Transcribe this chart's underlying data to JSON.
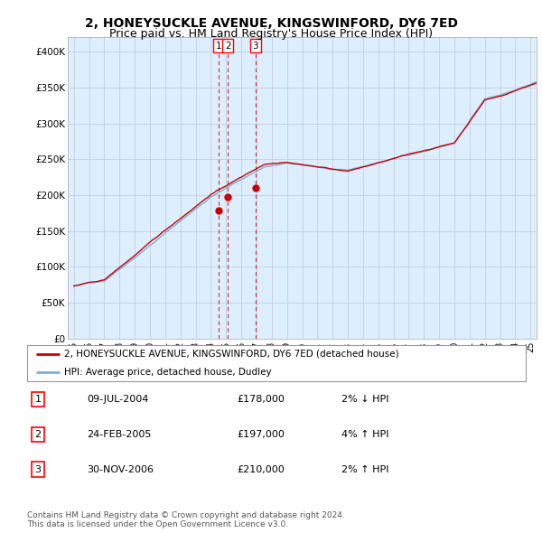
{
  "title": "2, HONEYSUCKLE AVENUE, KINGSWINFORD, DY6 7ED",
  "subtitle": "Price paid vs. HM Land Registry's House Price Index (HPI)",
  "title_fontsize": 10,
  "subtitle_fontsize": 9,
  "ylim": [
    0,
    420000
  ],
  "yticks": [
    0,
    50000,
    100000,
    150000,
    200000,
    250000,
    300000,
    350000,
    400000
  ],
  "ytick_labels": [
    "£0",
    "£50K",
    "£100K",
    "£150K",
    "£200K",
    "£250K",
    "£300K",
    "£350K",
    "£400K"
  ],
  "hpi_color": "#7bafd4",
  "price_color": "#cc0000",
  "chart_bg": "#ddeeff",
  "legend_house": "2, HONEYSUCKLE AVENUE, KINGSWINFORD, DY6 7ED (detached house)",
  "legend_hpi": "HPI: Average price, detached house, Dudley",
  "transactions": [
    {
      "label": "1",
      "date_num": 2004.53,
      "price": 178000
    },
    {
      "label": "2",
      "date_num": 2005.12,
      "price": 197000
    },
    {
      "label": "3",
      "date_num": 2006.92,
      "price": 210000
    }
  ],
  "table_rows": [
    [
      "1",
      "09-JUL-2004",
      "£178,000",
      "2% ↓ HPI"
    ],
    [
      "2",
      "24-FEB-2005",
      "£197,000",
      "4% ↑ HPI"
    ],
    [
      "3",
      "30-NOV-2006",
      "£210,000",
      "2% ↑ HPI"
    ]
  ],
  "footer": "Contains HM Land Registry data © Crown copyright and database right 2024.\nThis data is licensed under the Open Government Licence v3.0.",
  "background_color": "#ffffff",
  "grid_color": "#c0c8d8"
}
